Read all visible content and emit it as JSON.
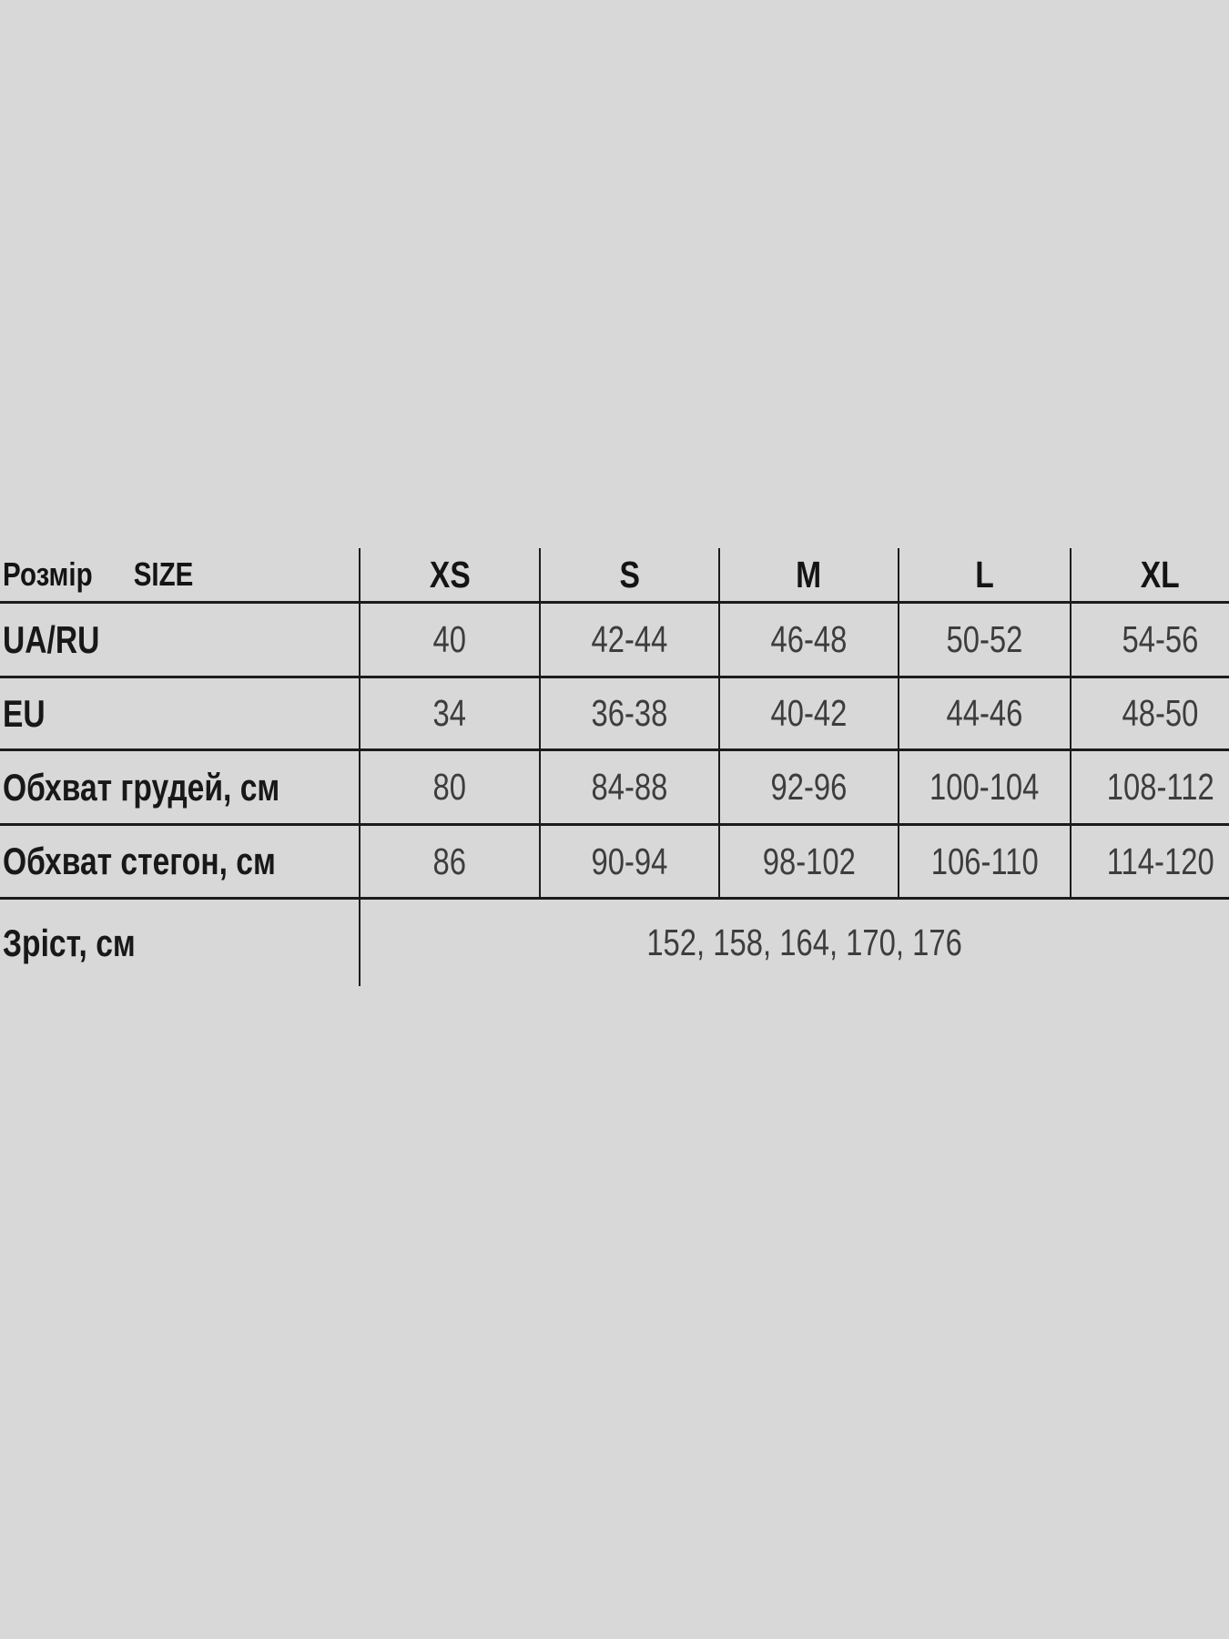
{
  "colors": {
    "background": "#d8d8d8",
    "grid_line": "#1c1c1c",
    "label_text": "#141414",
    "value_text": "#3d3d3d"
  },
  "size_table": {
    "header": {
      "label_uk": "Розмір",
      "label_en": "SIZE",
      "size_labels": [
        "XS",
        "S",
        "M",
        "L",
        "XL"
      ]
    },
    "rows": [
      {
        "label": "UA/RU",
        "values": [
          "40",
          "42-44",
          "46-48",
          "50-52",
          "54-56"
        ]
      },
      {
        "label": "EU",
        "values": [
          "34",
          "36-38",
          "40-42",
          "44-46",
          "48-50"
        ]
      },
      {
        "label": "Обхват грудей, см",
        "values": [
          "80",
          "84-88",
          "92-96",
          "100-104",
          "108-112"
        ]
      },
      {
        "label": "Обхват стегон, см",
        "values": [
          "86",
          "90-94",
          "98-102",
          "106-110",
          "114-120"
        ]
      },
      {
        "label": "Зріст, см",
        "values_merged": "152, 158, 164, 170, 176"
      }
    ]
  },
  "chart_data": {
    "type": "table",
    "columns": [
      "Розмір SIZE",
      "XS",
      "S",
      "M",
      "L",
      "XL"
    ],
    "rows": [
      [
        "UA/RU",
        "40",
        "42-44",
        "46-48",
        "50-52",
        "54-56"
      ],
      [
        "EU",
        "34",
        "36-38",
        "40-42",
        "44-46",
        "48-50"
      ],
      [
        "Обхват грудей, см",
        "80",
        "84-88",
        "92-96",
        "100-104",
        "108-112"
      ],
      [
        "Обхват стегон, см",
        "86",
        "90-94",
        "98-102",
        "106-110",
        "114-120"
      ],
      [
        "Зріст, см",
        "152, 158, 164, 170, 176"
      ]
    ],
    "title": "",
    "legend_position": "none",
    "grid": true
  }
}
